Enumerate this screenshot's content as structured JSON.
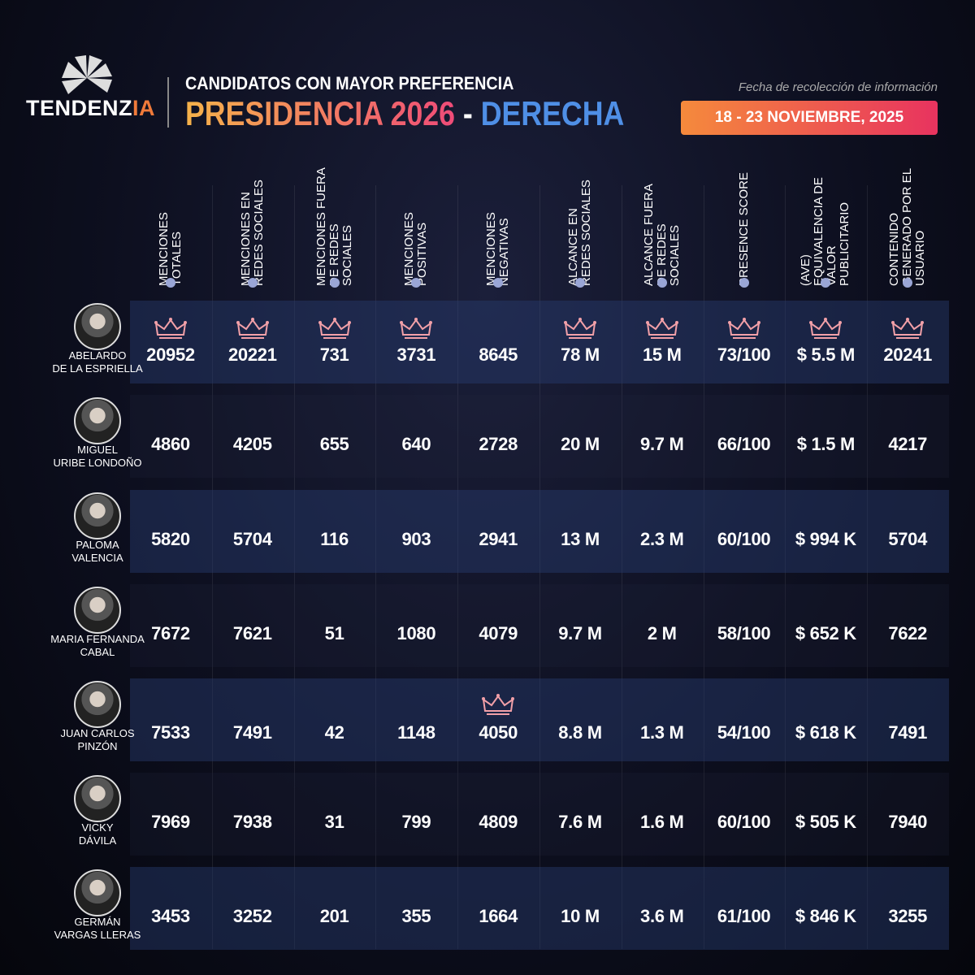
{
  "header": {
    "logo": [
      "TENDENZ",
      "IA"
    ],
    "kicker": "CANDIDATOS CON MAYOR PREFERENCIA",
    "title": "PRESIDENCIA 2026",
    "separator": "-",
    "title_accent": "DERECHA",
    "date_label": "Fecha de recolección de información",
    "date": "18 - 23 NOVIEMBRE, 2025"
  },
  "table": {
    "columns": [
      "MENCIONES TOTALES",
      "MENCIONES EN REDES SOCIALES",
      "MENCIONES FUERA DE REDES SOCIALES",
      "MENCIONES POSITIVAS",
      "MENCIONES NEGATIVAS",
      "ALCANCE EN REDES SOCIALES",
      "ALCANCE FUERA DE REDES SOCIALES",
      "PRESENCE SCORE",
      "(AVE) EQUIVALENCIA DE VALOR PUBLICITARIO",
      "CONTENIDO GENERADO POR EL USUARIO"
    ],
    "rows": [
      {
        "name": [
          "ABELARDO",
          "DE LA ESPRIELLA"
        ],
        "cells": [
          20952,
          20221,
          731,
          3731,
          8645,
          "78 M",
          "15 M",
          "73/100",
          "$ 5.5 M",
          20241
        ]
      },
      {
        "name": [
          "MIGUEL",
          "URIBE LONDOÑO"
        ],
        "cells": [
          4860,
          4205,
          655,
          640,
          2728,
          "20 M",
          "9.7 M",
          "66/100",
          "$ 1.5 M",
          4217
        ]
      },
      {
        "name": [
          "PALOMA",
          "VALENCIA"
        ],
        "cells": [
          5820,
          5704,
          116,
          903,
          2941,
          "13 M",
          "2.3 M",
          "60/100",
          "$ 994 K",
          5704
        ]
      },
      {
        "name": [
          "MARIA FERNANDA",
          "CABAL"
        ],
        "cells": [
          7672,
          7621,
          51,
          1080,
          4079,
          "9.7 M",
          "2 M",
          "58/100",
          "$ 652 K",
          7622
        ]
      },
      {
        "name": [
          "JUAN CARLOS",
          "PINZÓN"
        ],
        "cells": [
          7533,
          7491,
          42,
          1148,
          4050,
          "8.8 M",
          "1.3 M",
          "54/100",
          "$ 618 K",
          7491
        ]
      },
      {
        "name": [
          "VICKY",
          "DÁVILA"
        ],
        "cells": [
          7969,
          7938,
          31,
          799,
          4809,
          "7.6 M",
          "1.6 M",
          "60/100",
          "$ 505 K",
          7940
        ]
      },
      {
        "name": [
          "GERMÁN",
          "VARGAS LLERAS"
        ],
        "cells": [
          3453,
          3252,
          201,
          355,
          1664,
          "10 M",
          "3.6 M",
          "61/100",
          "$ 846 K",
          3255
        ]
      }
    ]
  }
}
